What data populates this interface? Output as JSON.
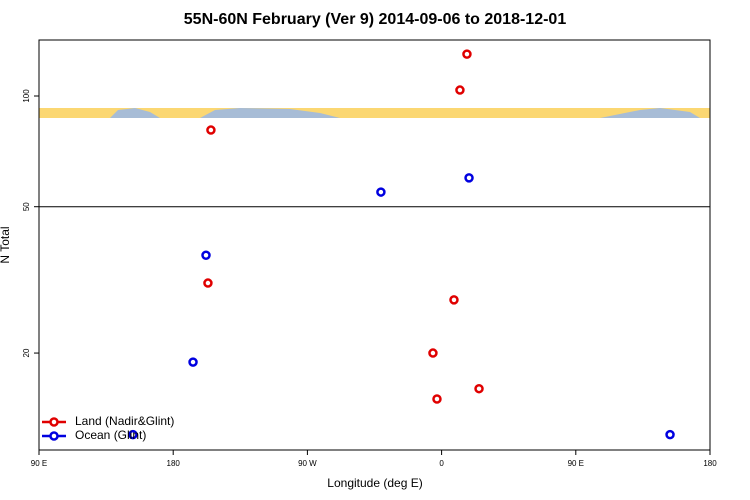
{
  "chart_data": {
    "type": "scatter",
    "title": "55N-60N February (Ver 9)   2014-09-06 to 2018-12-01",
    "x_label": "Longitude (deg E)",
    "y_label": "N Total",
    "xlim": [
      -270,
      180
    ],
    "xticks": [
      {
        "value": -270,
        "label": "90 E"
      },
      {
        "value": -180,
        "label": "180"
      },
      {
        "value": -90,
        "label": "90 W"
      },
      0,
      {
        "value": 90,
        "label": "90 E"
      },
      180
    ],
    "ylim": [
      10.9,
      142
    ],
    "yticks": [
      20,
      50,
      100
    ],
    "y_scale": "log",
    "legend": "lower left",
    "series": [
      {
        "name": "Land (Nadir&Glint)",
        "color": "#e00000",
        "x": [
          17.0,
          12.3,
          -154.7,
          -156.7,
          8.3,
          -5.8,
          25.1,
          -3.1
        ],
        "values": [
          130,
          103.8,
          80.8,
          31.0,
          27.9,
          20,
          16.0,
          15.0
        ]
      },
      {
        "name": "Ocean (Glint)",
        "color": "#0000e0",
        "x": [
          -40.7,
          18.4,
          -158.0,
          -166.7,
          -207.0,
          153.2
        ],
        "values": [
          54.8,
          59.9,
          36.9,
          18.9,
          12.0,
          12.0
        ]
      }
    ]
  }
}
